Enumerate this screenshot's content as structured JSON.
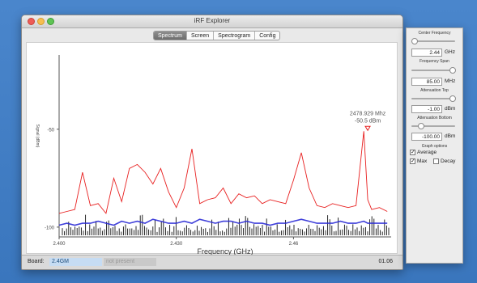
{
  "window": {
    "title": "iRF Explorer"
  },
  "tabs": [
    "Spectrum",
    "Screen",
    "Spectrogram",
    "Config"
  ],
  "active_tab": "Spectrum",
  "plot": {
    "ylabel": "Signal (dBm)",
    "xlabel": "Frequency (GHz)",
    "marker_freq": "2478.929 Mhz",
    "marker_level": "-50.5 dBm",
    "yticks": [
      "-50",
      "-100"
    ],
    "xticks": [
      "2.400",
      "2.430",
      "2.46"
    ]
  },
  "chart_data": {
    "type": "line",
    "xlabel": "Frequency (GHz)",
    "ylabel": "Signal (dBm)",
    "xlim": [
      2.4,
      2.485
    ],
    "ylim": [
      -105,
      -10
    ],
    "grid": false,
    "x": [
      2.4,
      2.402,
      2.404,
      2.406,
      2.408,
      2.41,
      2.412,
      2.414,
      2.416,
      2.418,
      2.42,
      2.422,
      2.424,
      2.426,
      2.428,
      2.43,
      2.432,
      2.434,
      2.436,
      2.438,
      2.44,
      2.442,
      2.444,
      2.446,
      2.448,
      2.45,
      2.452,
      2.454,
      2.456,
      2.458,
      2.46,
      2.462,
      2.464,
      2.466,
      2.468,
      2.47,
      2.472,
      2.474,
      2.476,
      2.478,
      2.479,
      2.48,
      2.482,
      2.484
    ],
    "series": [
      {
        "values": [
          -93,
          -92,
          -91,
          -72,
          -89,
          -88,
          -93,
          -75,
          -87,
          -70,
          -68,
          -72,
          -78,
          -70,
          -82,
          -90,
          -80,
          -60,
          -88,
          -86,
          -85,
          -80,
          -88,
          -83,
          -85,
          -84,
          -88,
          -86,
          -87,
          -88,
          -76,
          -62,
          -80,
          -89,
          -90,
          -88,
          -89,
          -90,
          -89,
          -51,
          -86,
          -91,
          -90,
          -92
        ],
        "color": "#e82020"
      },
      {
        "values": [
          -99,
          -98,
          -99,
          -98,
          -98,
          -97,
          -98,
          -99,
          -97,
          -98,
          -97,
          -98,
          -96,
          -97,
          -98,
          -98,
          -97,
          -98,
          -96,
          -97,
          -98,
          -97,
          -97,
          -98,
          -97,
          -98,
          -98,
          -99,
          -98,
          -98,
          -97,
          -96,
          -97,
          -98,
          -98,
          -98,
          -97,
          -98,
          -98,
          -97,
          -98,
          -98,
          -98,
          -98
        ],
        "color": "#2b2bd6"
      }
    ]
  },
  "panel": {
    "center_label": "Center Frequency",
    "center_value": "2.44",
    "center_unit": "GHz",
    "span_label": "Frequency Span",
    "span_value": "85.00",
    "span_unit": "MHz",
    "atten_top_label": "Attenuation Top",
    "atten_top_value": "-1.00",
    "atten_top_unit": "dBm",
    "atten_bottom_label": "Attenuation Bottom",
    "atten_bottom_value": "-100.00",
    "atten_bottom_unit": "dBm",
    "graph_options_label": "Graph options",
    "average_label": "Average",
    "max_label": "Max",
    "decay_label": "Decay",
    "average_checked": true,
    "max_checked": true,
    "decay_checked": false
  },
  "status": {
    "board_label": "Board:",
    "board_value": "2.4GM",
    "board2_value": "not present",
    "version": "01.06"
  },
  "colors": {
    "max_trace": "#e82020",
    "avg_trace": "#2b2bd6",
    "marker": "#e82020"
  }
}
